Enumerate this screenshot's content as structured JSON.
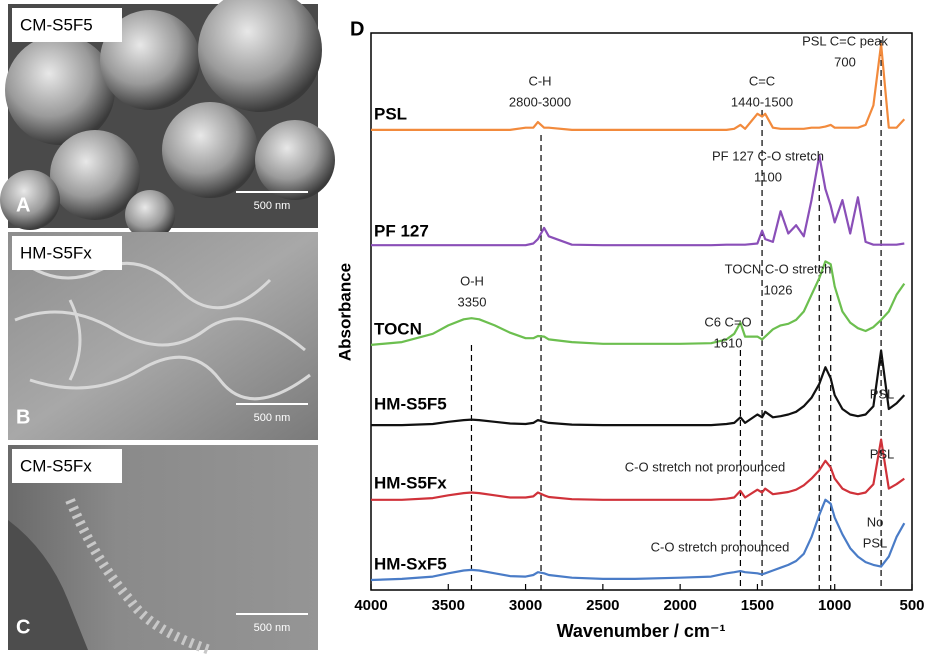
{
  "image_panels": [
    {
      "label": "CM-S5F5",
      "letter": "A",
      "scale": "500 nm"
    },
    {
      "label": "HM-S5Fx",
      "letter": "B",
      "scale": "500 nm"
    },
    {
      "label": "CM-S5Fx",
      "letter": "C",
      "scale": "500 nm"
    }
  ],
  "chart_data": {
    "type": "line",
    "panel_letter": "D",
    "x_label": "Wavenumber / cm⁻¹",
    "y_label": "Absorbance",
    "xlim": [
      4000,
      500
    ],
    "xticks": [
      4000,
      3500,
      3000,
      2500,
      2000,
      1500,
      1000,
      500
    ],
    "ylim": [
      0,
      10
    ],
    "x": [
      4000,
      3800,
      3600,
      3500,
      3400,
      3350,
      3300,
      3200,
      3100,
      3000,
      2950,
      2920,
      2880,
      2850,
      2700,
      2500,
      2300,
      2000,
      1800,
      1700,
      1650,
      1610,
      1580,
      1500,
      1470,
      1450,
      1400,
      1350,
      1300,
      1250,
      1200,
      1150,
      1100,
      1060,
      1026,
      1000,
      950,
      900,
      850,
      800,
      750,
      700,
      650,
      600,
      550
    ],
    "series": [
      {
        "name": "PSL",
        "color": "#f28a3c",
        "values": [
          8.26,
          8.26,
          8.26,
          8.26,
          8.26,
          8.26,
          8.26,
          8.26,
          8.26,
          8.3,
          8.3,
          8.4,
          8.3,
          8.3,
          8.26,
          8.26,
          8.26,
          8.26,
          8.26,
          8.26,
          8.28,
          8.35,
          8.28,
          8.55,
          8.5,
          8.55,
          8.3,
          8.28,
          8.28,
          8.28,
          8.28,
          8.3,
          8.3,
          8.32,
          8.35,
          8.3,
          8.3,
          8.3,
          8.3,
          8.35,
          8.7,
          9.8,
          8.3,
          8.3,
          8.45
        ]
      },
      {
        "name": "PF 127",
        "color": "#8a4fb8",
        "values": [
          6.19,
          6.19,
          6.19,
          6.19,
          6.19,
          6.19,
          6.19,
          6.19,
          6.19,
          6.19,
          6.22,
          6.3,
          6.5,
          6.35,
          6.2,
          6.19,
          6.19,
          6.19,
          6.19,
          6.2,
          6.2,
          6.2,
          6.2,
          6.22,
          6.45,
          6.3,
          6.25,
          6.8,
          6.4,
          6.55,
          6.35,
          7.0,
          7.8,
          7.2,
          6.9,
          6.6,
          7.0,
          6.4,
          7.05,
          6.25,
          6.2,
          6.2,
          6.2,
          6.2,
          6.22
        ]
      },
      {
        "name": "TOCN",
        "color": "#6cbf4f",
        "values": [
          4.4,
          4.45,
          4.6,
          4.75,
          4.86,
          4.88,
          4.86,
          4.75,
          4.62,
          4.52,
          4.52,
          4.56,
          4.55,
          4.5,
          4.45,
          4.42,
          4.42,
          4.42,
          4.43,
          4.5,
          4.6,
          4.8,
          4.55,
          4.55,
          4.5,
          4.55,
          4.68,
          4.75,
          4.78,
          4.85,
          5.0,
          5.3,
          5.6,
          5.9,
          5.85,
          5.45,
          5.0,
          4.8,
          4.7,
          4.65,
          4.72,
          4.85,
          5.0,
          5.3,
          5.5
        ]
      },
      {
        "name": "HM-S5F5",
        "color": "#111111",
        "values": [
          2.96,
          2.96,
          2.98,
          3.02,
          3.05,
          3.06,
          3.05,
          3.02,
          2.99,
          2.98,
          3.0,
          3.05,
          3.02,
          3.0,
          2.97,
          2.96,
          2.96,
          2.96,
          2.96,
          2.98,
          3.0,
          3.1,
          3.0,
          3.15,
          3.1,
          3.2,
          3.1,
          3.12,
          3.15,
          3.2,
          3.3,
          3.45,
          3.7,
          4.0,
          3.8,
          3.5,
          3.25,
          3.15,
          3.12,
          3.15,
          3.3,
          4.3,
          3.25,
          3.35,
          3.5
        ]
      },
      {
        "name": "HM-S5Fx",
        "color": "#d0323a",
        "values": [
          1.62,
          1.62,
          1.65,
          1.7,
          1.74,
          1.75,
          1.74,
          1.7,
          1.66,
          1.66,
          1.68,
          1.75,
          1.7,
          1.67,
          1.63,
          1.62,
          1.62,
          1.62,
          1.62,
          1.64,
          1.66,
          1.78,
          1.66,
          1.8,
          1.75,
          1.82,
          1.72,
          1.74,
          1.76,
          1.8,
          1.88,
          2.0,
          2.15,
          2.32,
          2.2,
          2.0,
          1.82,
          1.75,
          1.72,
          1.75,
          1.9,
          2.7,
          1.82,
          1.9,
          2.0
        ]
      },
      {
        "name": "HM-SxF5",
        "color": "#4a7cc7",
        "values": [
          0.18,
          0.2,
          0.24,
          0.3,
          0.35,
          0.36,
          0.35,
          0.3,
          0.25,
          0.24,
          0.27,
          0.32,
          0.3,
          0.27,
          0.22,
          0.2,
          0.2,
          0.22,
          0.24,
          0.3,
          0.32,
          0.34,
          0.32,
          0.3,
          0.28,
          0.3,
          0.35,
          0.4,
          0.45,
          0.52,
          0.65,
          0.95,
          1.35,
          1.62,
          1.55,
          1.3,
          1.0,
          0.75,
          0.6,
          0.5,
          0.45,
          0.42,
          0.6,
          0.95,
          1.2
        ]
      }
    ],
    "reference_lines": [
      3350,
      2900,
      1610,
      1470,
      1100,
      1026,
      700
    ],
    "annotations": [
      {
        "lines": [
          "C-H",
          "2800-3000"
        ]
      },
      {
        "lines": [
          "C=C",
          "1440-1500"
        ]
      },
      {
        "lines": [
          "PSL C=C peak",
          "700"
        ]
      },
      {
        "lines": [
          "PF 127 C-O stretch",
          "1100"
        ]
      },
      {
        "lines": [
          "TOCN C-O stretch",
          "1026"
        ]
      },
      {
        "lines": [
          "O-H",
          "3350"
        ]
      },
      {
        "lines": [
          "C6 C=O",
          "1610"
        ]
      },
      {
        "lines": [
          "PSL"
        ]
      },
      {
        "lines": [
          "PSL"
        ]
      },
      {
        "lines": [
          "No",
          "PSL"
        ]
      },
      {
        "lines": [
          "C-O stretch not pronounced"
        ]
      },
      {
        "lines": [
          "C-O stretch pronounced"
        ]
      }
    ]
  }
}
